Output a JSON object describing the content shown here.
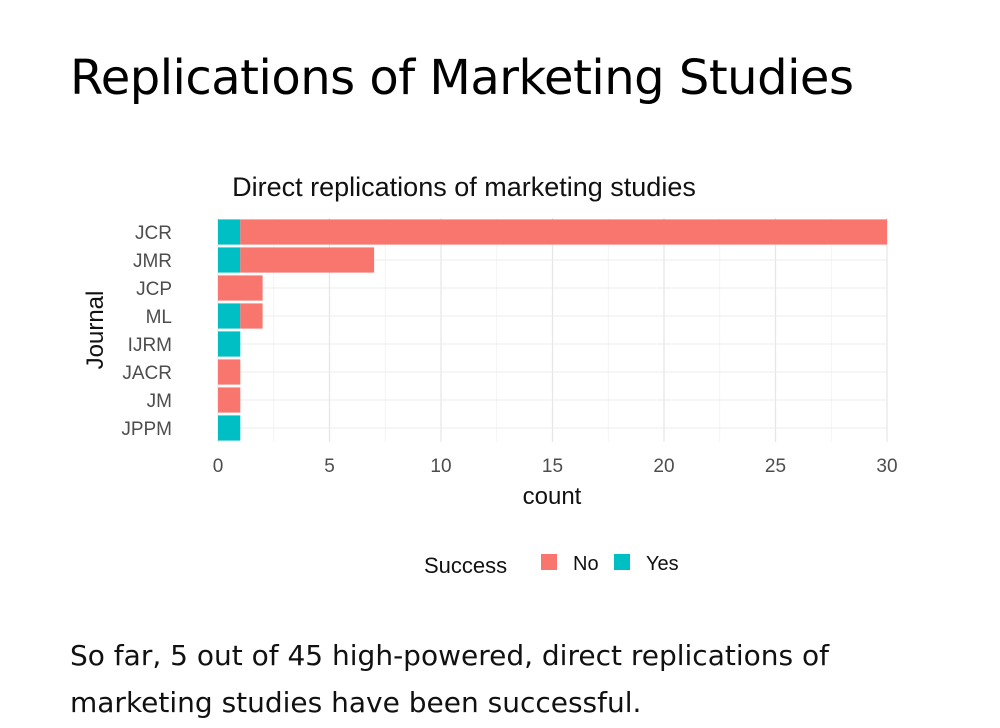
{
  "slide": {
    "title": "Replications of Marketing Studies",
    "caption": "So far, 5 out of 45 high-powered, direct replications of marketing studies have been successful."
  },
  "chart_data": {
    "type": "bar",
    "orientation": "horizontal",
    "stacked": true,
    "title": "Direct replications of marketing studies",
    "xlabel": "count",
    "ylabel": "Journal",
    "categories": [
      "JCR",
      "JMR",
      "JCP",
      "ML",
      "IJRM",
      "JACR",
      "JM",
      "JPPM"
    ],
    "series": [
      {
        "name": "No",
        "color": "#F8766D",
        "values": [
          29,
          6,
          2,
          1,
          0,
          1,
          1,
          0
        ]
      },
      {
        "name": "Yes",
        "color": "#00BFC4",
        "values": [
          1,
          1,
          0,
          1,
          1,
          0,
          0,
          1
        ]
      }
    ],
    "xlim": [
      0,
      30
    ],
    "xticks": [
      0,
      5,
      10,
      15,
      20,
      25,
      30
    ],
    "grid": true,
    "legend": {
      "title": "Success",
      "position": "bottom"
    }
  }
}
